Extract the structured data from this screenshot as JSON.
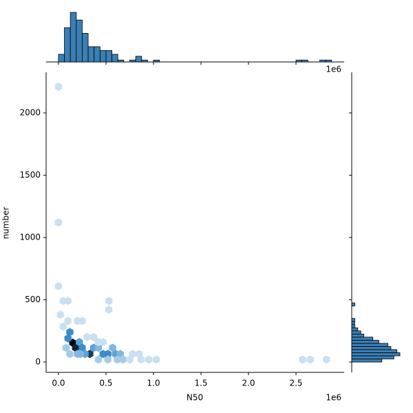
{
  "chart_data": {
    "type": "hexbin-joint",
    "x_label": "N50",
    "y_label": "number",
    "x_offset_label": "1e6",
    "xlim": [
      -0.13,
      3.007
    ],
    "ylim": [
      -83,
      2326
    ],
    "xticks": [
      {
        "value": 0,
        "label": "0.0"
      },
      {
        "value": 0.5,
        "label": "0.5"
      },
      {
        "value": 1,
        "label": "1.0"
      },
      {
        "value": 1.5,
        "label": "1.5"
      },
      {
        "value": 2,
        "label": "2.0"
      },
      {
        "value": 2.5,
        "label": "2.5"
      }
    ],
    "yticks": [
      0,
      500,
      1000,
      1500,
      2000
    ],
    "hex_colors": [
      "#eef5fb",
      "#3a8ccb",
      "#050a10"
    ],
    "hexbins": {
      "x": [
        0.15,
        0.18,
        0.33,
        0.12,
        0.1,
        0.22,
        0.25,
        0.28,
        0.37,
        0.42,
        0.47,
        0.52,
        0.6,
        0.65,
        0.57,
        0.68,
        0.52,
        0.62,
        0.42,
        0.85,
        0.87,
        0.95,
        1.03,
        0.23,
        0.2,
        0.08,
        0.12,
        0.05,
        0.1,
        0.2,
        0.25,
        0.02,
        0.05,
        0.1,
        0.53,
        0.53,
        0.0,
        0.0,
        0.0,
        2.57,
        2.65,
        2.82,
        0.75,
        0.78,
        0.42,
        0.47,
        0.3,
        0.37
      ],
      "y": [
        155,
        115,
        65,
        240,
        190,
        160,
        115,
        65,
        115,
        115,
        65,
        65,
        65,
        65,
        115,
        20,
        20,
        20,
        20,
        65,
        20,
        20,
        20,
        65,
        65,
        115,
        65,
        285,
        330,
        330,
        330,
        380,
        490,
        490,
        490,
        420,
        610,
        1120,
        2210,
        20,
        20,
        20,
        20,
        65,
        160,
        160,
        200,
        200
      ],
      "counts": [
        10,
        9,
        8,
        5,
        5,
        4,
        5,
        4,
        4,
        3,
        5,
        5,
        4,
        3,
        3,
        2,
        2,
        2,
        2,
        1,
        1,
        1,
        1,
        3,
        3,
        2,
        2,
        1,
        1,
        1,
        1,
        1,
        1,
        1,
        1,
        1,
        1,
        1,
        1,
        1,
        1,
        1,
        1,
        1,
        1,
        1,
        1,
        1
      ]
    },
    "x_hist": {
      "color": "#3a7fb5",
      "bins": [
        0,
        0.0625,
        0.125,
        0.1875,
        0.25,
        0.3125,
        0.375,
        0.4375,
        0.5,
        0.5625,
        0.625,
        0.6875,
        0.75,
        0.8125,
        0.875,
        0.9375,
        1,
        1.0625,
        1.125,
        1.1875,
        1.25,
        1.3125,
        1.375,
        1.4375,
        1.5,
        1.5625,
        1.625,
        1.6875,
        1.75,
        1.8125,
        1.875,
        1.9375,
        2,
        2.0625,
        2.125,
        2.1875,
        2.25,
        2.3125,
        2.375,
        2.4375,
        2.5,
        2.5625,
        2.625,
        2.6875,
        2.75,
        2.8125,
        2.875
      ],
      "counts": [
        4,
        18,
        26,
        22,
        15,
        8,
        8,
        6,
        6,
        4,
        1,
        0,
        1,
        3,
        1,
        0,
        1,
        0,
        0,
        0,
        0,
        0,
        0,
        0,
        0,
        0,
        0,
        0,
        0,
        0,
        0,
        0,
        0,
        0,
        0,
        0,
        0,
        0,
        0,
        0,
        1,
        1,
        0,
        0,
        1,
        1
      ]
    },
    "y_hist": {
      "color": "#3a7fb5",
      "bins": [
        0,
        25,
        50,
        75,
        100,
        125,
        150,
        175,
        200,
        225,
        250,
        275,
        300,
        325,
        350,
        375,
        400,
        425,
        450,
        475,
        500
      ],
      "counts": [
        10,
        14,
        16,
        15,
        13,
        12,
        9,
        7,
        4,
        3,
        2,
        1,
        1,
        1,
        0,
        0,
        0,
        0,
        1,
        0
      ]
    }
  }
}
